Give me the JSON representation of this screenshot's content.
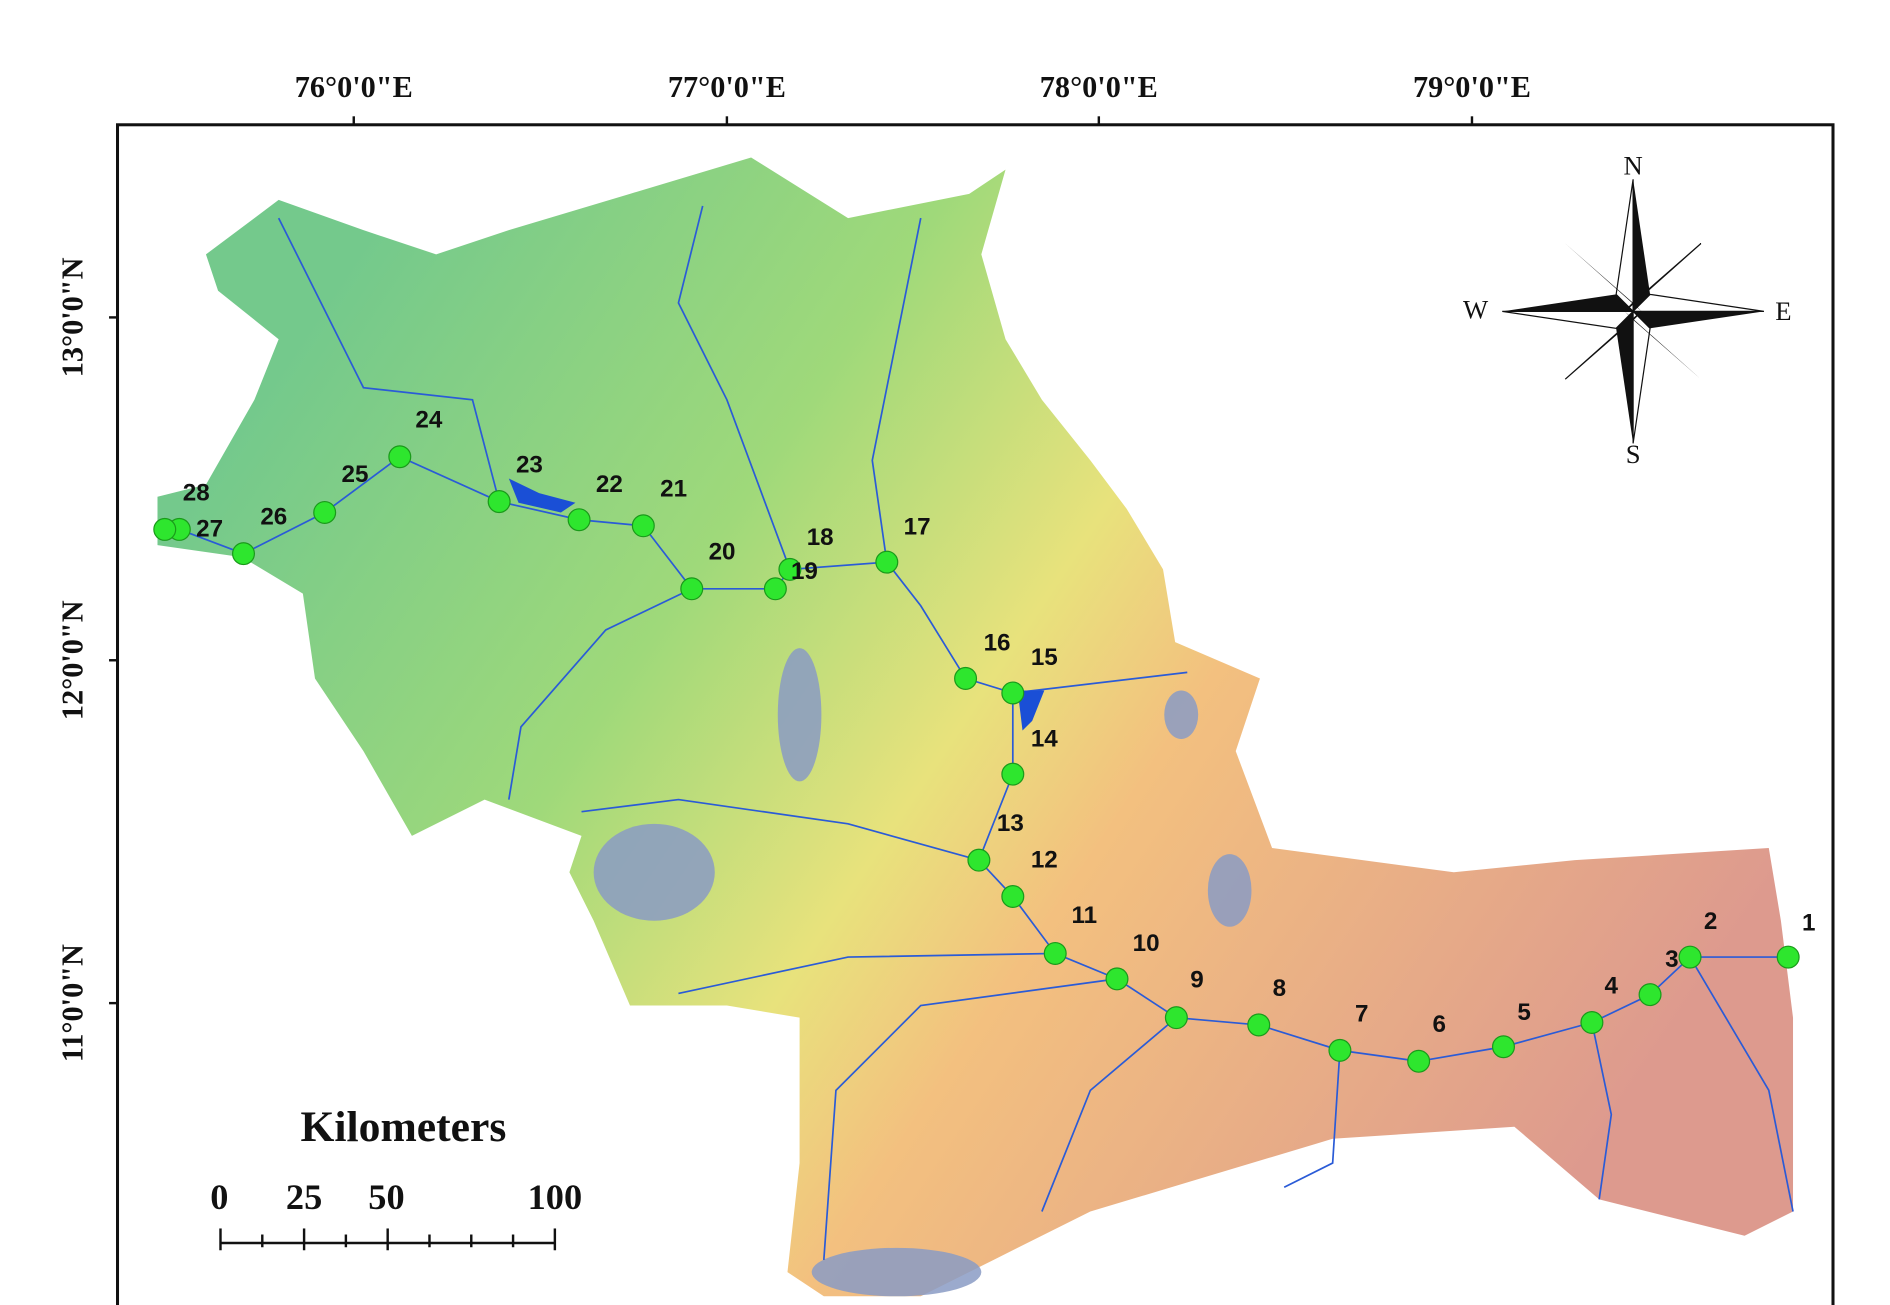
{
  "axes": {
    "longitude": [
      "76°0'0\"E",
      "77°0'0\"E",
      "78°0'0\"E",
      "79°0'0\"E"
    ],
    "latitude": [
      "13°0'0\"N",
      "12°0'0\"N",
      "11°0'0\"N"
    ]
  },
  "compass": {
    "north": "N",
    "east": "E",
    "south": "S",
    "west": "W"
  },
  "scale_bar": {
    "title": "Kilometers",
    "labels": [
      "0",
      "25",
      "50",
      "100"
    ]
  },
  "stations": [
    "1",
    "2",
    "3",
    "4",
    "5",
    "6",
    "7",
    "8",
    "9",
    "10",
    "11",
    "12",
    "13",
    "14",
    "15",
    "16",
    "17",
    "18",
    "19",
    "20",
    "21",
    "22",
    "23",
    "24",
    "25",
    "26",
    "27",
    "28"
  ]
}
